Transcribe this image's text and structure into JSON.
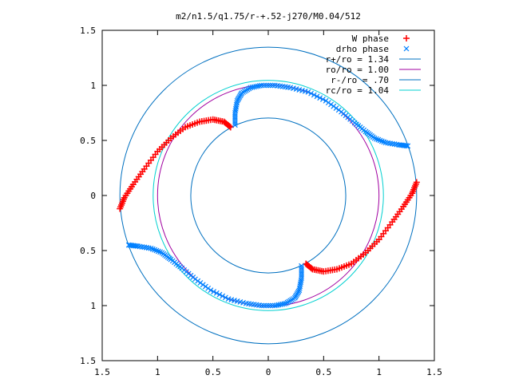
{
  "chart_data": {
    "type": "scatter",
    "title": "m2/n1.5/q1.75/r-+.52-j270/M0.04/512",
    "xlabel": "",
    "ylabel": "",
    "xlim": [
      -1.5,
      1.5
    ],
    "ylim": [
      -1.5,
      1.5
    ],
    "x_tick_values": [
      -1.5,
      -1,
      -0.5,
      0,
      0.5,
      1,
      1.5
    ],
    "x_tick_labels": [
      "1.5",
      "1",
      "0.5",
      "0",
      "0.5",
      "1",
      "1.5"
    ],
    "y_tick_values": [
      1.5,
      1,
      0.5,
      0,
      -0.5,
      -1,
      -1.5
    ],
    "y_tick_labels": [
      "1.5",
      "1",
      "0.5",
      "0",
      "0.5",
      "1",
      "1.5"
    ],
    "grid": false,
    "legend_position": "top-right",
    "colors": {
      "w_phase": "#ff0000",
      "drho_phase": "#0080ff",
      "r_plus": "#0070c0",
      "r_o": "#a000a0",
      "r_minus": "#0070c0",
      "r_c": "#00d0d0",
      "axes": "#000000"
    },
    "circles": [
      {
        "name": "r+/ro = 1.34",
        "r": 1.34,
        "color_key": "r_plus"
      },
      {
        "name": "ro/ro = 1.00",
        "r": 1.0,
        "color_key": "r_o"
      },
      {
        "name": "r-/ro = .70",
        "r": 0.7,
        "color_key": "r_minus"
      },
      {
        "name": "rc/ro = 1.04",
        "r": 1.04,
        "color_key": "r_c"
      }
    ],
    "series": [
      {
        "name": "W phase",
        "marker": "+",
        "color_key": "w_phase",
        "x": [
          -1.34,
          -1.3,
          -1.22,
          -1.12,
          -1.0,
          -0.88,
          -0.75,
          -0.62,
          -0.5,
          -0.4,
          -0.34,
          1.34,
          1.3,
          1.22,
          1.12,
          1.0,
          0.88,
          0.75,
          0.62,
          0.5,
          0.4,
          0.34
        ],
        "y": [
          -0.12,
          -0.02,
          0.1,
          0.24,
          0.4,
          0.52,
          0.62,
          0.67,
          0.69,
          0.67,
          0.62,
          0.12,
          0.02,
          -0.1,
          -0.24,
          -0.4,
          -0.52,
          -0.62,
          -0.67,
          -0.69,
          -0.67,
          -0.62
        ]
      },
      {
        "name": "drho phase",
        "marker": "x",
        "color_key": "drho_phase",
        "x": [
          -0.3,
          -0.3,
          -0.28,
          -0.24,
          -0.16,
          -0.06,
          0.06,
          0.2,
          0.36,
          0.52,
          0.66,
          0.78,
          0.88,
          0.96,
          1.06,
          1.18,
          1.26,
          0.3,
          0.3,
          0.28,
          0.24,
          0.16,
          0.06,
          -0.06,
          -0.2,
          -0.36,
          -0.52,
          -0.66,
          -0.78,
          -0.88,
          -0.96,
          -1.06,
          -1.18,
          -1.26
        ],
        "y": [
          0.64,
          0.75,
          0.86,
          0.93,
          0.98,
          1.0,
          1.0,
          0.98,
          0.94,
          0.86,
          0.76,
          0.66,
          0.58,
          0.52,
          0.48,
          0.46,
          0.45,
          -0.64,
          -0.75,
          -0.86,
          -0.93,
          -0.98,
          -1.0,
          -1.0,
          -0.98,
          -0.94,
          -0.86,
          -0.76,
          -0.66,
          -0.58,
          -0.52,
          -0.48,
          -0.46,
          -0.45
        ]
      }
    ]
  }
}
